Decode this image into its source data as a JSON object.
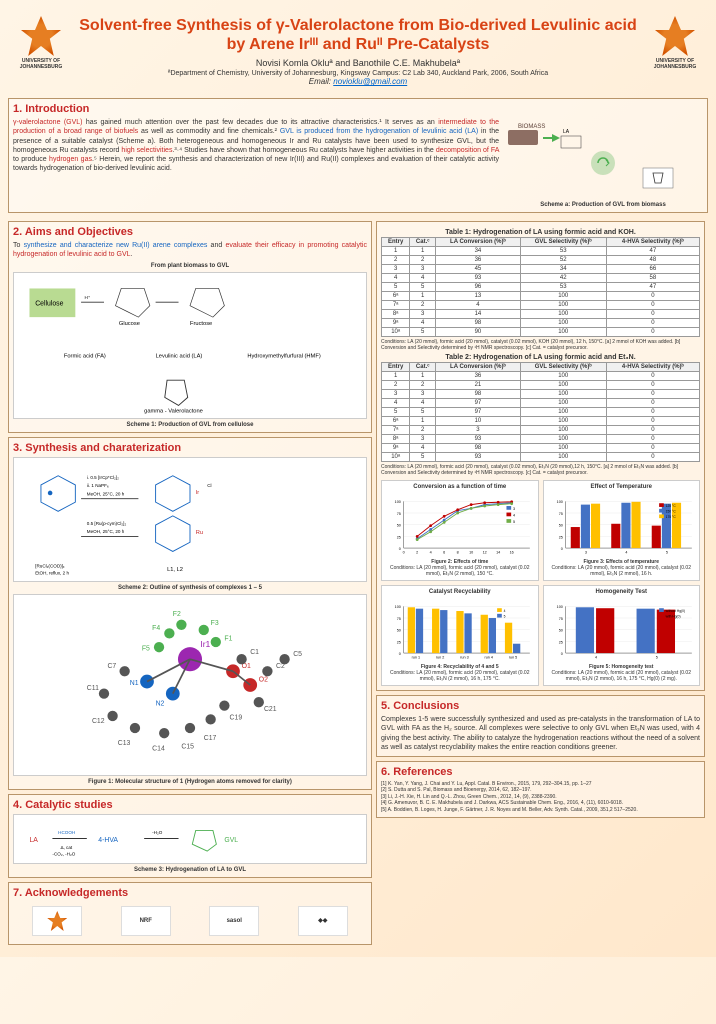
{
  "header": {
    "title": "Solvent-free Synthesis of γ-Valerolactone from Bio-derived Levulinic acid by Arene Irᴵᴵᴵ and Ruᴵᴵ Pre-Catalysts",
    "authors": "Novisi Komla Okluª and Banothile C.E. Makhubelaª",
    "affiliation": "ªDepartment of Chemistry, University of Johannesburg, Kingsway Campus: C2 Lab 340, Auckland Park, 2006, South Africa",
    "email_label": "Email: ",
    "email": "novioklu@gmail.com",
    "logo_text": "UNIVERSITY OF JOHANNESBURG"
  },
  "intro": {
    "title": "1. Introduction",
    "text_p1": "γ-valerolactone (GVL)",
    "text_p2": " has gained much attention over the past few decades due to its attractive characteristics.¹ It serves as an ",
    "text_p3": "intermediate to the production of a broad range of biofuels",
    "text_p4": " as well as commodity and fine chemicals.² ",
    "text_p5": "GVL is produced from the hydrogenation of levulinic acid (LA)",
    "text_p6": " in the presence of a suitable catalyst (Scheme a). Both heterogeneous and homogeneous Ir and Ru catalysts have been used to synthesize GVL, but the homogeneous Ru catalysts record ",
    "text_p7": "high selectivities",
    "text_p8": ".³·⁴ Studies have shown that homogeneous Ru catalysts have higher activities in the ",
    "text_p9": "decomposition of FA",
    "text_p10": " to produce ",
    "text_p11": "hydrogen gas",
    "text_p12": ".⁵ Herein, we report the synthesis and characterization of new Ir(III) and Ru(II) complexes and evaluation of their catalytic activity towards hydrogenation of bio-derived levulinic acid.",
    "scheme_caption": "Scheme a: Production of GVL from biomass"
  },
  "aims": {
    "title": "2. Aims and Objectives",
    "text_p1": "To ",
    "text_p2": "synthesize and characterize new Ru(II) arene complexes",
    "text_p3": " and ",
    "text_p4": "evaluate their efficacy in promoting catalytic hydrogenation of levulinic acid to GVL",
    "text_p5": ".",
    "subheader": "From plant biomass to GVL",
    "scheme_caption": "Scheme 1: Production of GVL from cellulose"
  },
  "synthesis": {
    "title": "3. Synthesis and charaterization",
    "scheme_caption": "Scheme 2: Outline of synthesis of complexes 1 – 5",
    "figure_caption": "Figure 1: Molecular structure of 1 (Hydrogen atoms removed for clarity)"
  },
  "catalytic": {
    "title": "4. Catalytic studies",
    "scheme_caption": "Scheme 3: Hydrogenation of LA to GVL"
  },
  "table1": {
    "title": "Table 1: Hydrogenation of LA using formic acid and KOH.",
    "headers": [
      "Entry",
      "Cat.ᶜ",
      "LA Conversion (%)ᵇ",
      "GVL Selectivity (%)ᵇ",
      "4-HVA Selectivity (%)ᵇ"
    ],
    "rows": [
      [
        "1",
        "1",
        "34",
        "53",
        "47"
      ],
      [
        "2",
        "2",
        "36",
        "52",
        "48"
      ],
      [
        "3",
        "3",
        "45",
        "34",
        "66"
      ],
      [
        "4",
        "4",
        "93",
        "42",
        "58"
      ],
      [
        "5",
        "5",
        "96",
        "53",
        "47"
      ],
      [
        "6ᵃ",
        "1",
        "13",
        "100",
        "0"
      ],
      [
        "7ᵃ",
        "2",
        "4",
        "100",
        "0"
      ],
      [
        "8ᵃ",
        "3",
        "14",
        "100",
        "0"
      ],
      [
        "9ᵃ",
        "4",
        "98",
        "100",
        "0"
      ],
      [
        "10ᵃ",
        "5",
        "90",
        "100",
        "0"
      ]
    ],
    "conditions": "Conditions: LA (20 mmol), formic acid (20 mmol), catalyst (0.02 mmol), KOH (20 mmol), 12 h, 150°C. [a] 2 mmol of KOH was added. [b] Conversion and Selectivity determined by ¹H NMR spectroscopy. [c] Cat. = catalyst precursor."
  },
  "table2": {
    "title": "Table 2: Hydrogenation of LA using formic acid and Et₃N.",
    "headers": [
      "Entry",
      "Cat.ᶜ",
      "LA Conversion (%)ᵇ",
      "GVL Selectivity (%)ᵇ",
      "4-HVA Selectivity (%)ᵇ"
    ],
    "rows": [
      [
        "1",
        "1",
        "36",
        "100",
        "0"
      ],
      [
        "2",
        "2",
        "21",
        "100",
        "0"
      ],
      [
        "3",
        "3",
        "98",
        "100",
        "0"
      ],
      [
        "4",
        "4",
        "97",
        "100",
        "0"
      ],
      [
        "5",
        "5",
        "97",
        "100",
        "0"
      ],
      [
        "6ᵃ",
        "1",
        "10",
        "100",
        "0"
      ],
      [
        "7ᵃ",
        "2",
        "3",
        "100",
        "0"
      ],
      [
        "8ᵃ",
        "3",
        "93",
        "100",
        "0"
      ],
      [
        "9ᵃ",
        "4",
        "98",
        "100",
        "0"
      ],
      [
        "10ᵃ",
        "5",
        "93",
        "100",
        "0"
      ]
    ],
    "conditions": "Conditions: LA (20 mmol), formic acid (20 mmol), catalyst (0.02 mmol), Et₃N (20 mmol),12 h, 150°C. [a] 2 mmol of Et₃N was added. [b] Conversion and Selectivity determined by ¹H NMR spectroscopy. [c] Cat. = catalyst precursor."
  },
  "charts": {
    "chart1": {
      "title": "Conversion as a function of time",
      "type": "line",
      "xlabel": "Time/h",
      "ylabel": "Conversion/%",
      "xlim": [
        0,
        18
      ],
      "ylim": [
        0,
        100
      ],
      "xticks": [
        0,
        2,
        4,
        6,
        8,
        10,
        12,
        14,
        16
      ],
      "yticks": [
        0,
        20,
        40,
        60,
        80,
        100
      ],
      "series": [
        {
          "name": "3",
          "color": "#4472c4",
          "points": [
            [
              2,
              20
            ],
            [
              4,
              40
            ],
            [
              6,
              60
            ],
            [
              8,
              80
            ],
            [
              10,
              85
            ],
            [
              12,
              93
            ],
            [
              14,
              95
            ],
            [
              16,
              97
            ]
          ]
        },
        {
          "name": "4",
          "color": "#c00000",
          "points": [
            [
              2,
              25
            ],
            [
              4,
              48
            ],
            [
              6,
              68
            ],
            [
              8,
              82
            ],
            [
              10,
              93
            ],
            [
              12,
              97
            ],
            [
              14,
              98
            ],
            [
              16,
              99
            ]
          ]
        },
        {
          "name": "5",
          "color": "#70ad47",
          "points": [
            [
              2,
              18
            ],
            [
              4,
              35
            ],
            [
              6,
              55
            ],
            [
              8,
              75
            ],
            [
              10,
              85
            ],
            [
              12,
              90
            ],
            [
              14,
              93
            ],
            [
              16,
              95
            ]
          ]
        }
      ],
      "caption": "Figure 2: Effects of time",
      "conditions": "Conditions: LA (20 mmol), formic acid (20 mmol), catalyst (0.02 mmol), Et₃N (2 mmol), 150 °C."
    },
    "chart2": {
      "title": "Effect of Temperature",
      "type": "bar",
      "xlabel": "Catalyst",
      "ylabel": "Conversion/%",
      "categories": [
        "3",
        "4",
        "5"
      ],
      "ylim": [
        0,
        100
      ],
      "series": [
        {
          "name": "125 °C",
          "color": "#c00000",
          "values": [
            45,
            52,
            48
          ]
        },
        {
          "name": "150 °C",
          "color": "#4472c4",
          "values": [
            93,
            97,
            95
          ]
        },
        {
          "name": "175 °C",
          "color": "#ffc000",
          "values": [
            95,
            99,
            97
          ]
        }
      ],
      "caption": "Figure 3: Effects of temperature",
      "conditions": "Conditions: LA (20 mmol), formic acid (20 mmol), catalyst (0.02 mmol), Et₃N (2 mmol), 16 h."
    },
    "chart3": {
      "title": "Catalyst Recyclability",
      "type": "bar",
      "xlabel": "run",
      "ylabel": "Conversion/%",
      "categories": [
        "run 1",
        "run 2",
        "run 3",
        "run 4",
        "run 5"
      ],
      "ylim": [
        0,
        100
      ],
      "series": [
        {
          "name": "4",
          "color": "#ffc000",
          "values": [
            98,
            95,
            90,
            82,
            65
          ]
        },
        {
          "name": "5",
          "color": "#4472c4",
          "values": [
            95,
            92,
            85,
            75,
            20
          ]
        }
      ],
      "caption": "Figure 4: Recyclability of 4 and 5",
      "conditions": "Conditions: LA (20 mmol), formic acid (20 mmol), catalyst (0.02 mmol), Et₃N (2 mmol), 16 h, 175 °C."
    },
    "chart4": {
      "title": "Homogeneity Test",
      "type": "bar",
      "xlabel": "Catalyst",
      "ylabel": "Conversion/%",
      "categories": [
        "4",
        "5"
      ],
      "ylim": [
        0,
        100
      ],
      "series": [
        {
          "name": "without Hg(0)",
          "color": "#4472c4",
          "values": [
            98,
            95
          ]
        },
        {
          "name": "with Hg(0)",
          "color": "#c00000",
          "values": [
            96,
            93
          ]
        }
      ],
      "caption": "Figure 5: Homogeneity test",
      "conditions": "Conditions: LA (20 mmol), formic acid (20 mmol), catalyst (0.02 mmol), Et₃N (2 mmol), 16 h, 175 °C, Hg(0) (2 mg)."
    }
  },
  "conclusions": {
    "title": "5. Conclusions",
    "text": "Complexes 1-5 were successfully synthesized and used as pre-catalysts in the transformation of LA to GVL with FA as the H₂ source. All complexes were selective to only GVL when Et₃N was used, with 4 giving the best activity. The ability to catalyze the hydrogenation reactions without the need of a solvent as well as catalyst recyclability makes the entire reaction conditions greener."
  },
  "acknowledgements": {
    "title": "7. Acknowledgements",
    "logos": [
      "UJ",
      "NRF",
      "sasol",
      "◆◆"
    ]
  },
  "references": {
    "title": "6. References",
    "items": [
      "[1] K. Yan, Y. Yang, J. Chai and Y. Lu, Appl. Catal. B Environ., 2015, 179, 292–304.15, pp. 1–27",
      "[2] S. Dutta and S. Pal, Biomass and Bioenergy, 2014, 62, 182–197.",
      "[3] Li, J.-H. Xie, H. Lin and Q.-L. Zhou, Green Chem., 2012, 14, (9), 2388-2390.",
      "[4] G. Amenuvor, B. C. E. Makhubela and J. Darkwa, ACS Sustainable Chem. Eng., 2016, 4, (11), 6010-6018.",
      "[5] A. Boddien, B. Loges, H. Junge, F. Gärtner, J. R. Noyes and M. Beller, Adv. Synth. Catal., 2009, 351,2 517–2520."
    ]
  },
  "colors": {
    "accent_red": "#c62828",
    "accent_orange": "#d84315",
    "border": "#b8956a",
    "bg_gradient_start": "#fff5e6",
    "bg_gradient_end": "#ffe8cc"
  }
}
